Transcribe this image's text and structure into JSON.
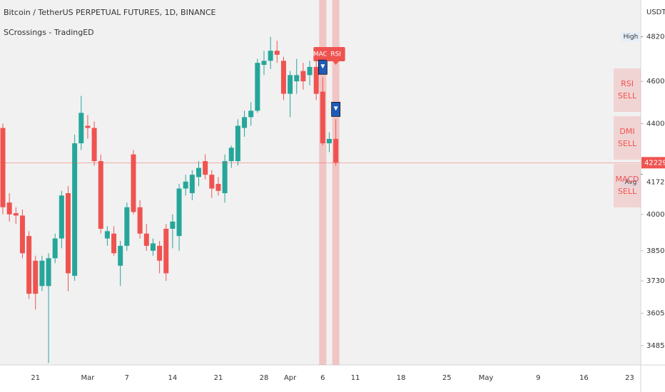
{
  "chart_data": {
    "type": "candlestick",
    "title": "Bitcoin / TetherUS PERPETUAL FUTURES, 1D, BINANCE",
    "subtitle": "SCrossings - TradingED",
    "y_unit": "USDT",
    "log_scale": true,
    "grid": false,
    "up_color": "#26a69a",
    "down_color": "#ef5350",
    "categories": [
      null,
      null,
      null,
      null,
      null,
      "21",
      null,
      null,
      null,
      null,
      null,
      null,
      null,
      "Mar",
      null,
      null,
      null,
      null,
      null,
      "7",
      null,
      null,
      null,
      null,
      null,
      null,
      "14",
      null,
      null,
      null,
      null,
      null,
      null,
      "21",
      null,
      null,
      null,
      null,
      null,
      null,
      "28",
      null,
      null,
      null,
      "Apr",
      null,
      null,
      null,
      null,
      "6",
      null,
      null,
      null,
      null,
      "11",
      null,
      null,
      null,
      null,
      null,
      null,
      "18",
      null,
      null,
      null,
      null,
      null,
      null,
      "25",
      null,
      null,
      null,
      null,
      null,
      "May",
      null,
      null,
      null,
      null,
      null,
      null,
      null,
      "9",
      null,
      null,
      null,
      null,
      null,
      null,
      "16",
      null,
      null,
      null,
      null,
      null,
      null,
      "23",
      null
    ],
    "open": [
      43800,
      40500,
      40050,
      39950,
      39100,
      38100,
      37100,
      37100,
      38200,
      39000,
      40900,
      37500,
      43100,
      43900,
      43800,
      42300,
      39000,
      39200,
      37900,
      38700,
      42600,
      40300,
      39200,
      38500,
      38700,
      39400,
      39400,
      39100,
      41100,
      40900,
      41600,
      42300,
      41700,
      41300,
      40900,
      42300,
      42300,
      43800,
      44300,
      44600,
      46800,
      47000,
      47500,
      47000,
      45400,
      46000,
      46500,
      46300,
      46700,
      45500,
      43100,
      43300,
      null,
      null,
      null,
      null,
      null,
      null,
      null,
      null,
      null,
      null,
      null,
      null,
      null,
      null,
      null,
      null,
      null,
      null,
      null,
      null,
      null,
      null,
      null,
      null,
      null,
      null,
      null,
      null,
      null,
      null,
      null,
      null,
      null,
      null,
      null,
      null,
      null,
      null,
      null,
      null,
      null,
      null,
      null,
      null,
      null,
      null
    ],
    "high": [
      44000,
      40900,
      40300,
      40200,
      39300,
      38300,
      38300,
      38400,
      39200,
      41000,
      41200,
      43500,
      45300,
      44400,
      44100,
      42600,
      39500,
      39500,
      38900,
      40500,
      42800,
      40600,
      39600,
      39000,
      38900,
      39600,
      40000,
      41300,
      41700,
      41900,
      42300,
      42600,
      41900,
      41600,
      42600,
      43000,
      44200,
      44600,
      45000,
      47100,
      47500,
      48200,
      48000,
      47200,
      46500,
      47100,
      46900,
      47000,
      47000,
      46200,
      43600,
      44200,
      null,
      null,
      null,
      null,
      null,
      null,
      null,
      null,
      null,
      null,
      null,
      null,
      null,
      null,
      null,
      null,
      null,
      null,
      null,
      null,
      null,
      null,
      null,
      null,
      null,
      null,
      null,
      null,
      null,
      null,
      null,
      null,
      null,
      null,
      null,
      null,
      null,
      null,
      null,
      null,
      null,
      null,
      null,
      null,
      null,
      null
    ],
    "low": [
      40000,
      39700,
      39600,
      38200,
      36600,
      36200,
      36900,
      34221,
      38000,
      38600,
      36900,
      37300,
      42800,
      43300,
      42100,
      39200,
      38700,
      38300,
      37100,
      38500,
      40000,
      39000,
      38500,
      38300,
      37600,
      37300,
      38600,
      38500,
      40800,
      40600,
      41200,
      41500,
      40700,
      40800,
      40500,
      42000,
      42100,
      43400,
      43900,
      44500,
      46300,
      46600,
      46900,
      45100,
      44300,
      45400,
      45600,
      45800,
      45100,
      43000,
      42700,
      42100,
      null,
      null,
      null,
      null,
      null,
      null,
      null,
      null,
      null,
      null,
      null,
      null,
      null,
      null,
      null,
      null,
      null,
      null,
      null,
      null,
      null,
      null,
      null,
      null,
      null,
      null,
      null,
      null,
      null,
      null,
      null,
      null,
      null,
      null,
      null,
      null,
      null,
      null,
      null,
      null,
      null,
      null,
      null,
      null,
      null,
      null
    ],
    "close": [
      40300,
      40000,
      39950,
      38400,
      36800,
      36800,
      38100,
      38200,
      39000,
      40800,
      37600,
      43100,
      44500,
      43800,
      42300,
      39400,
      39300,
      38400,
      38700,
      40300,
      40100,
      39200,
      38700,
      38800,
      38100,
      37600,
      39700,
      41100,
      41400,
      41700,
      42000,
      41700,
      41100,
      41000,
      42300,
      42900,
      43900,
      44300,
      44600,
      46900,
      47000,
      47500,
      47300,
      45400,
      46300,
      46300,
      46000,
      46700,
      45400,
      43100,
      43300,
      42229.2,
      null,
      null,
      null,
      null,
      null,
      null,
      null,
      null,
      null,
      null,
      null,
      null,
      null,
      null,
      null,
      null,
      null,
      null,
      null,
      null,
      null,
      null,
      null,
      null,
      null,
      null,
      null,
      null,
      null,
      null,
      null,
      null,
      null,
      null,
      null,
      null,
      null,
      null,
      null,
      null,
      null,
      null,
      null,
      null,
      null,
      null
    ],
    "signals": [
      null,
      null,
      null,
      null,
      null,
      null,
      null,
      null,
      null,
      null,
      null,
      null,
      null,
      null,
      null,
      null,
      null,
      null,
      null,
      null,
      null,
      null,
      null,
      null,
      null,
      null,
      null,
      null,
      null,
      null,
      null,
      null,
      null,
      null,
      null,
      null,
      null,
      null,
      null,
      null,
      null,
      null,
      null,
      null,
      null,
      null,
      null,
      null,
      null,
      "MACD",
      null,
      "RSI",
      null,
      null,
      null,
      null,
      null,
      null,
      null,
      null,
      null,
      null,
      null,
      null,
      null,
      null,
      null,
      null,
      null,
      null,
      null,
      null,
      null,
      null,
      null,
      null,
      null,
      null,
      null,
      null,
      null,
      null,
      null,
      null,
      null,
      null,
      null,
      null,
      null,
      null,
      null,
      null,
      null,
      null,
      null,
      null,
      null,
      null
    ],
    "ylim": [
      34150,
      50100
    ],
    "yticks": [
      {
        "value": 46000,
        "label": "46000.0"
      },
      {
        "value": 44000,
        "label": "44000.0"
      },
      {
        "value": 40000,
        "label": "40000.0"
      },
      {
        "value": 38500,
        "label": "38500.0"
      },
      {
        "value": 37300,
        "label": "37300.0"
      },
      {
        "value": 36050,
        "label": "36050.0"
      },
      {
        "value": 34850,
        "label": "34850.0"
      }
    ],
    "price_markers": [
      {
        "name": "High",
        "value": 48200,
        "label": "48200.0"
      },
      {
        "name": "Avg",
        "value": 41725,
        "label": "41725.0"
      }
    ],
    "last_price": {
      "value": 42229.2,
      "label": "42229.2"
    },
    "sell_panel": [
      [
        "RSI",
        "SELL"
      ],
      [
        "DMI",
        "SELL"
      ],
      [
        "MACD",
        "SELL"
      ]
    ]
  }
}
